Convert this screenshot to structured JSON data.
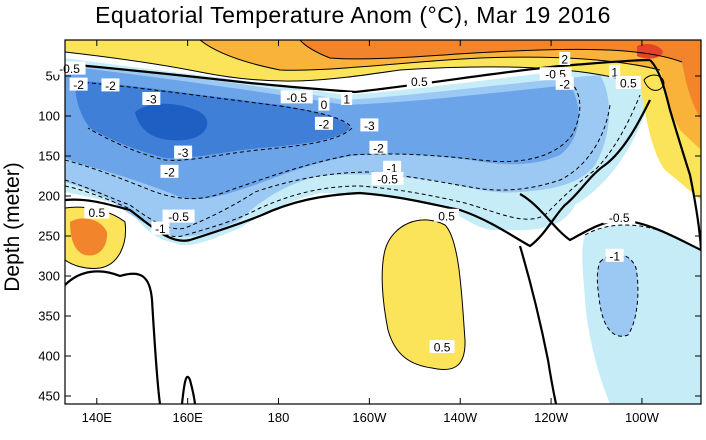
{
  "chart_data": {
    "type": "heatmap",
    "title": "Equatorial Temperature Anom (°C), Mar 19 2016",
    "ylabel": "Depth (meter)",
    "xlabel": "",
    "x_ticks": [
      "140E",
      "160E",
      "180",
      "160W",
      "140W",
      "120W",
      "100W"
    ],
    "x_tick_lon": [
      140,
      160,
      180,
      200,
      220,
      240,
      260
    ],
    "xlim": [
      133,
      273
    ],
    "y_ticks": [
      50,
      100,
      150,
      200,
      250,
      300,
      350,
      400,
      450
    ],
    "ylim": [
      460,
      5
    ],
    "y_reversed": true,
    "contour_levels": [
      -4,
      -3,
      -2,
      -1,
      -0.5,
      0,
      0.5,
      1,
      2,
      3,
      4
    ],
    "palette": {
      "neg_4": "#1e5fc4",
      "neg_3": "#3f7fd8",
      "neg_2": "#6ca4ea",
      "neg_1": "#9cc9f3",
      "neg_05": "#c6ecf8",
      "zero": "#ffffff",
      "pos_05": "#fbe35a",
      "pos_1": "#f9b23a",
      "pos_2": "#f2852c",
      "pos_3": "#e5422a",
      "pos_4": "#c81e1e"
    },
    "contour_labels": [
      {
        "text": "-0.5",
        "lon": 134,
        "depth": 42
      },
      {
        "text": "-2",
        "lon": 136,
        "depth": 62
      },
      {
        "text": "-2",
        "lon": 143,
        "depth": 63
      },
      {
        "text": "-3",
        "lon": 152,
        "depth": 80
      },
      {
        "text": "-0.5",
        "lon": 184,
        "depth": 78
      },
      {
        "text": "0",
        "lon": 190,
        "depth": 87
      },
      {
        "text": "1",
        "lon": 195,
        "depth": 80
      },
      {
        "text": "0.5",
        "lon": 211,
        "depth": 58
      },
      {
        "text": "-2",
        "lon": 190,
        "depth": 111
      },
      {
        "text": "-3",
        "lon": 200,
        "depth": 113
      },
      {
        "text": "-3",
        "lon": 159,
        "depth": 147
      },
      {
        "text": "-2",
        "lon": 156,
        "depth": 171
      },
      {
        "text": "-2",
        "lon": 202,
        "depth": 141
      },
      {
        "text": "-1",
        "lon": 205,
        "depth": 166
      },
      {
        "text": "-0.5",
        "lon": 204,
        "depth": 180
      },
      {
        "text": "0.5",
        "lon": 140,
        "depth": 222
      },
      {
        "text": "-0.5",
        "lon": 158,
        "depth": 227
      },
      {
        "text": "-1",
        "lon": 154,
        "depth": 242
      },
      {
        "text": "0.5",
        "lon": 217,
        "depth": 226
      },
      {
        "text": "0.5",
        "lon": 216,
        "depth": 390
      },
      {
        "text": "2",
        "lon": 243,
        "depth": 30
      },
      {
        "text": "-0.5",
        "lon": 241,
        "depth": 49
      },
      {
        "text": "-2",
        "lon": 243,
        "depth": 61
      },
      {
        "text": "1",
        "lon": 254,
        "depth": 46
      },
      {
        "text": "0.5",
        "lon": 257,
        "depth": 60
      },
      {
        "text": "-0.5",
        "lon": 255,
        "depth": 228
      },
      {
        "text": "-1",
        "lon": 254,
        "depth": 276
      }
    ]
  }
}
